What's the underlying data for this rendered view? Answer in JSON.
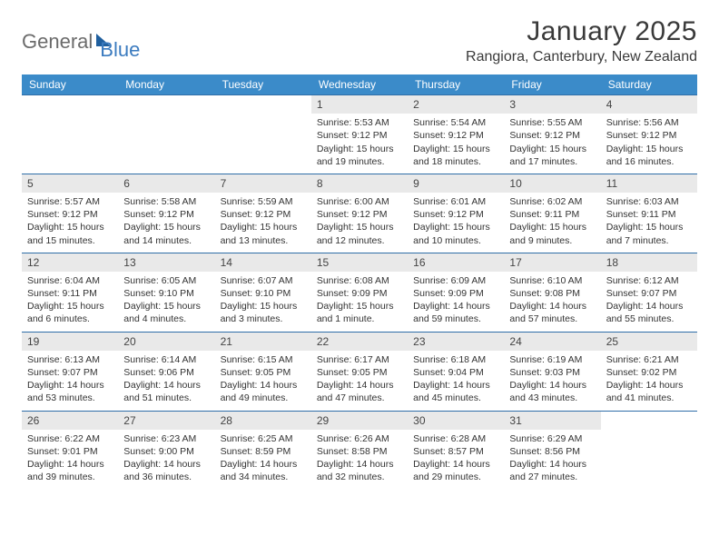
{
  "brand": {
    "part1": "General",
    "part2": "Blue"
  },
  "title": "January 2025",
  "location": "Rangiora, Canterbury, New Zealand",
  "colors": {
    "header_bg": "#3b8bc9",
    "row_border": "#2f6ea8",
    "daynum_bg": "#e9e9e9",
    "text": "#333333",
    "brand_gray": "#6b6b6b",
    "brand_blue": "#3b7bbf"
  },
  "dow": [
    "Sunday",
    "Monday",
    "Tuesday",
    "Wednesday",
    "Thursday",
    "Friday",
    "Saturday"
  ],
  "weeks": [
    [
      null,
      null,
      null,
      {
        "n": "1",
        "sr": "Sunrise: 5:53 AM",
        "ss": "Sunset: 9:12 PM",
        "dl": "Daylight: 15 hours and 19 minutes."
      },
      {
        "n": "2",
        "sr": "Sunrise: 5:54 AM",
        "ss": "Sunset: 9:12 PM",
        "dl": "Daylight: 15 hours and 18 minutes."
      },
      {
        "n": "3",
        "sr": "Sunrise: 5:55 AM",
        "ss": "Sunset: 9:12 PM",
        "dl": "Daylight: 15 hours and 17 minutes."
      },
      {
        "n": "4",
        "sr": "Sunrise: 5:56 AM",
        "ss": "Sunset: 9:12 PM",
        "dl": "Daylight: 15 hours and 16 minutes."
      }
    ],
    [
      {
        "n": "5",
        "sr": "Sunrise: 5:57 AM",
        "ss": "Sunset: 9:12 PM",
        "dl": "Daylight: 15 hours and 15 minutes."
      },
      {
        "n": "6",
        "sr": "Sunrise: 5:58 AM",
        "ss": "Sunset: 9:12 PM",
        "dl": "Daylight: 15 hours and 14 minutes."
      },
      {
        "n": "7",
        "sr": "Sunrise: 5:59 AM",
        "ss": "Sunset: 9:12 PM",
        "dl": "Daylight: 15 hours and 13 minutes."
      },
      {
        "n": "8",
        "sr": "Sunrise: 6:00 AM",
        "ss": "Sunset: 9:12 PM",
        "dl": "Daylight: 15 hours and 12 minutes."
      },
      {
        "n": "9",
        "sr": "Sunrise: 6:01 AM",
        "ss": "Sunset: 9:12 PM",
        "dl": "Daylight: 15 hours and 10 minutes."
      },
      {
        "n": "10",
        "sr": "Sunrise: 6:02 AM",
        "ss": "Sunset: 9:11 PM",
        "dl": "Daylight: 15 hours and 9 minutes."
      },
      {
        "n": "11",
        "sr": "Sunrise: 6:03 AM",
        "ss": "Sunset: 9:11 PM",
        "dl": "Daylight: 15 hours and 7 minutes."
      }
    ],
    [
      {
        "n": "12",
        "sr": "Sunrise: 6:04 AM",
        "ss": "Sunset: 9:11 PM",
        "dl": "Daylight: 15 hours and 6 minutes."
      },
      {
        "n": "13",
        "sr": "Sunrise: 6:05 AM",
        "ss": "Sunset: 9:10 PM",
        "dl": "Daylight: 15 hours and 4 minutes."
      },
      {
        "n": "14",
        "sr": "Sunrise: 6:07 AM",
        "ss": "Sunset: 9:10 PM",
        "dl": "Daylight: 15 hours and 3 minutes."
      },
      {
        "n": "15",
        "sr": "Sunrise: 6:08 AM",
        "ss": "Sunset: 9:09 PM",
        "dl": "Daylight: 15 hours and 1 minute."
      },
      {
        "n": "16",
        "sr": "Sunrise: 6:09 AM",
        "ss": "Sunset: 9:09 PM",
        "dl": "Daylight: 14 hours and 59 minutes."
      },
      {
        "n": "17",
        "sr": "Sunrise: 6:10 AM",
        "ss": "Sunset: 9:08 PM",
        "dl": "Daylight: 14 hours and 57 minutes."
      },
      {
        "n": "18",
        "sr": "Sunrise: 6:12 AM",
        "ss": "Sunset: 9:07 PM",
        "dl": "Daylight: 14 hours and 55 minutes."
      }
    ],
    [
      {
        "n": "19",
        "sr": "Sunrise: 6:13 AM",
        "ss": "Sunset: 9:07 PM",
        "dl": "Daylight: 14 hours and 53 minutes."
      },
      {
        "n": "20",
        "sr": "Sunrise: 6:14 AM",
        "ss": "Sunset: 9:06 PM",
        "dl": "Daylight: 14 hours and 51 minutes."
      },
      {
        "n": "21",
        "sr": "Sunrise: 6:15 AM",
        "ss": "Sunset: 9:05 PM",
        "dl": "Daylight: 14 hours and 49 minutes."
      },
      {
        "n": "22",
        "sr": "Sunrise: 6:17 AM",
        "ss": "Sunset: 9:05 PM",
        "dl": "Daylight: 14 hours and 47 minutes."
      },
      {
        "n": "23",
        "sr": "Sunrise: 6:18 AM",
        "ss": "Sunset: 9:04 PM",
        "dl": "Daylight: 14 hours and 45 minutes."
      },
      {
        "n": "24",
        "sr": "Sunrise: 6:19 AM",
        "ss": "Sunset: 9:03 PM",
        "dl": "Daylight: 14 hours and 43 minutes."
      },
      {
        "n": "25",
        "sr": "Sunrise: 6:21 AM",
        "ss": "Sunset: 9:02 PM",
        "dl": "Daylight: 14 hours and 41 minutes."
      }
    ],
    [
      {
        "n": "26",
        "sr": "Sunrise: 6:22 AM",
        "ss": "Sunset: 9:01 PM",
        "dl": "Daylight: 14 hours and 39 minutes."
      },
      {
        "n": "27",
        "sr": "Sunrise: 6:23 AM",
        "ss": "Sunset: 9:00 PM",
        "dl": "Daylight: 14 hours and 36 minutes."
      },
      {
        "n": "28",
        "sr": "Sunrise: 6:25 AM",
        "ss": "Sunset: 8:59 PM",
        "dl": "Daylight: 14 hours and 34 minutes."
      },
      {
        "n": "29",
        "sr": "Sunrise: 6:26 AM",
        "ss": "Sunset: 8:58 PM",
        "dl": "Daylight: 14 hours and 32 minutes."
      },
      {
        "n": "30",
        "sr": "Sunrise: 6:28 AM",
        "ss": "Sunset: 8:57 PM",
        "dl": "Daylight: 14 hours and 29 minutes."
      },
      {
        "n": "31",
        "sr": "Sunrise: 6:29 AM",
        "ss": "Sunset: 8:56 PM",
        "dl": "Daylight: 14 hours and 27 minutes."
      },
      null
    ]
  ]
}
